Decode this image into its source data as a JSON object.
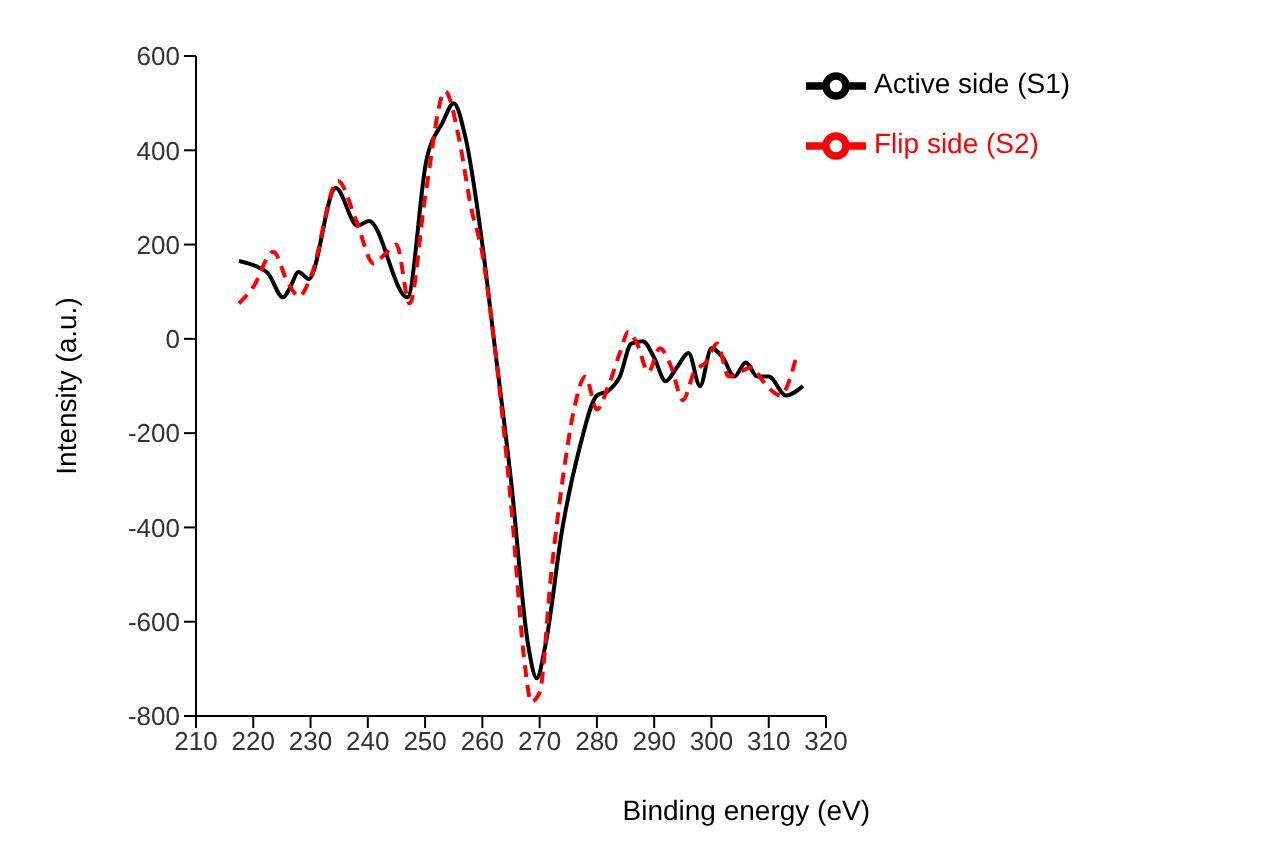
{
  "chart_data": {
    "type": "line",
    "xlabel": "Binding energy (eV)",
    "ylabel": "Intensity (a.u.)",
    "xlim": [
      210,
      320
    ],
    "xticks": [
      210,
      220,
      230,
      240,
      250,
      260,
      270,
      280,
      290,
      300,
      310,
      320
    ],
    "ylim": [
      -800,
      600
    ],
    "yticks": [
      -800,
      -600,
      -400,
      -200,
      0,
      200,
      400,
      600
    ],
    "grid": false,
    "legend": "top right",
    "marker": "none",
    "series": [
      {
        "name": "Active side (S1)",
        "color": "#000000",
        "line_style": "solid",
        "x": [
          217.5,
          221.2,
          222.5,
          225.2,
          226.4,
          227.9,
          229.7,
          234.4,
          238.2,
          240.2,
          246.9,
          250.2,
          253.1,
          255,
          257,
          260,
          262,
          265,
          268,
          269.5,
          271,
          274,
          277,
          280,
          282,
          284,
          286,
          288,
          290,
          292,
          294,
          296,
          298,
          300,
          302,
          304,
          306,
          308,
          310,
          313,
          316
        ],
        "values": [
          165,
          150,
          140,
          88,
          108,
          142,
          127,
          320,
          240,
          250,
          88,
          377,
          460,
          500,
          430,
          200,
          0,
          -300,
          -650,
          -720,
          -650,
          -400,
          -230,
          -120,
          -110,
          -80,
          -10,
          -5,
          -40,
          -90,
          -60,
          -30,
          -100,
          -20,
          -40,
          -80,
          -50,
          -80,
          -80,
          -120,
          -100
        ]
      },
      {
        "name": "Flip side (S2)",
        "color": "#ff0000",
        "line_style": "dashed",
        "x": [
          217.5,
          220,
          223.5,
          226,
          228,
          230,
          234.8,
          238,
          241,
          243,
          245,
          247.3,
          250,
          253.5,
          256,
          258,
          260,
          262,
          265,
          267.5,
          268.5,
          270,
          272,
          274,
          276,
          278,
          280,
          282,
          284,
          285.5,
          287,
          289,
          291,
          293,
          295,
          297,
          299,
          301,
          303,
          305,
          307,
          309,
          312,
          315
        ],
        "values": [
          75,
          110,
          185,
          120,
          90,
          130,
          335,
          250,
          160,
          180,
          200,
          75,
          300,
          525,
          420,
          280,
          180,
          0,
          -350,
          -700,
          -770,
          -750,
          -500,
          -300,
          -150,
          -80,
          -150,
          -100,
          -30,
          15,
          -10,
          -70,
          -20,
          -60,
          -130,
          -70,
          -50,
          -10,
          -80,
          -70,
          -60,
          -90,
          -120,
          -30
        ]
      }
    ]
  }
}
